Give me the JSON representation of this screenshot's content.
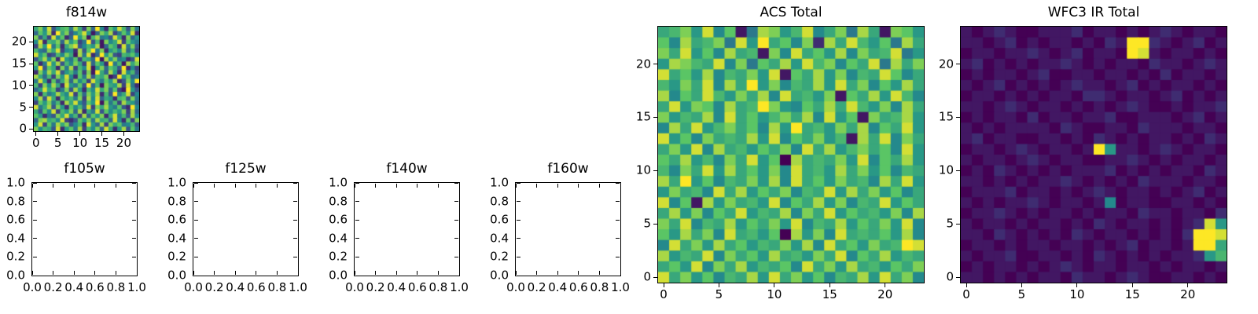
{
  "figure": {
    "background": "#ffffff",
    "axis_color": "#000000"
  },
  "colors": {
    "viridis_stops": [
      "#440154",
      "#3b528b",
      "#21918c",
      "#5ec962",
      "#fde725"
    ]
  },
  "chart_data": [
    {
      "type": "heatmap",
      "title": "f814w",
      "colormap": "viridis",
      "levels": 16,
      "extent": [
        0,
        24,
        0,
        24
      ],
      "xticks": {
        "values": [
          0,
          5,
          10,
          15,
          20
        ],
        "labels": [
          "0",
          "5",
          "10",
          "15",
          "20"
        ]
      },
      "yticks": {
        "values": [
          0,
          5,
          10,
          15,
          20
        ],
        "labels": [
          "0",
          "5",
          "10",
          "15",
          "20"
        ]
      },
      "rows": [
        "9c7e48ab6d93c5f72b8ea4c6",
        "5b8d2f9c47ae815c9d36b7e2",
        "c493e7b25f8c1ad674e92c58",
        "7e2a9c5d8b36f4a1c79e3b86",
        "3d8f6b29ce47a8d15b92e6c4",
        "a65c9e3782d4bf6c28a7d593",
        "e8b34a7c91d6e25f8c43a9b7",
        "49d7c2e86b3a95f1d8c6724e",
        "b26e8d4a7c93e5b82f6a1d9c",
        "8f4b92c6d3a7e18c5b94f273",
        "2c7d9e48a6b3c1f95d82e7a4",
        "d95a3c8e72b6d4a9c13f8b56",
        "6e82b49d5c7a3e96b8d24c7f",
        "a3c7d92e86b4f5a1c98d3e62",
        "58e9b36c4d82a7e9c5b31f84",
        "c2a68d97e3b5c8d2a4f69e37",
        "7d4e92b8a6c3d7e5982ab4c6",
        "3b8c6a2d9e74b8f1c6a3d985",
        "e69d4c82b7a5e3c9d86b42f7",
        "94b7e3a8c5d296e4b7a8c3d5",
        "b8264c9e7a3d5b8c29e6a4d7",
        "5cd9a7e324b8c6d9a5e72b3c",
        "8e3b6d9c47a2e85d3c9b67a4",
        "c7a94e28b6d3a7c5e928d4b6"
      ]
    },
    {
      "type": "empty",
      "title": "f105w",
      "xlim": [
        0,
        1
      ],
      "ylim": [
        0,
        1
      ],
      "xticks": {
        "values": [
          0,
          0.2,
          0.4,
          0.6,
          0.8,
          1.0
        ],
        "labels": [
          "0.0",
          "0.2",
          "0.4",
          "0.6",
          "0.8",
          "1.0"
        ]
      },
      "yticks": {
        "values": [
          0,
          0.2,
          0.4,
          0.6,
          0.8,
          1.0
        ],
        "labels": [
          "0.0",
          "0.2",
          "0.4",
          "0.6",
          "0.8",
          "1.0"
        ]
      }
    },
    {
      "type": "empty",
      "title": "f125w",
      "xlim": [
        0,
        1
      ],
      "ylim": [
        0,
        1
      ],
      "xticks": {
        "values": [
          0,
          0.2,
          0.4,
          0.6,
          0.8,
          1.0
        ],
        "labels": [
          "0.0",
          "0.2",
          "0.4",
          "0.6",
          "0.8",
          "1.0"
        ]
      },
      "yticks": {
        "values": [
          0,
          0.2,
          0.4,
          0.6,
          0.8,
          1.0
        ],
        "labels": [
          "0.0",
          "0.2",
          "0.4",
          "0.6",
          "0.8",
          "1.0"
        ]
      }
    },
    {
      "type": "empty",
      "title": "f140w",
      "xlim": [
        0,
        1
      ],
      "ylim": [
        0,
        1
      ],
      "xticks": {
        "values": [
          0,
          0.2,
          0.4,
          0.6,
          0.8,
          1.0
        ],
        "labels": [
          "0.0",
          "0.2",
          "0.4",
          "0.6",
          "0.8",
          "1.0"
        ]
      },
      "yticks": {
        "values": [
          0,
          0.2,
          0.4,
          0.6,
          0.8,
          1.0
        ],
        "labels": [
          "0.0",
          "0.2",
          "0.4",
          "0.6",
          "0.8",
          "1.0"
        ]
      }
    },
    {
      "type": "empty",
      "title": "f160w",
      "xlim": [
        0,
        1
      ],
      "ylim": [
        0,
        1
      ],
      "xticks": {
        "values": [
          0,
          0.2,
          0.4,
          0.6,
          0.8,
          1.0
        ],
        "labels": [
          "0.0",
          "0.2",
          "0.4",
          "0.6",
          "0.8",
          "1.0"
        ]
      },
      "yticks": {
        "values": [
          0,
          0.2,
          0.4,
          0.6,
          0.8,
          1.0
        ],
        "labels": [
          "0.0",
          "0.2",
          "0.4",
          "0.6",
          "0.8",
          "1.0"
        ]
      }
    },
    {
      "type": "heatmap",
      "title": "ACS Total",
      "colormap": "viridis",
      "levels": 16,
      "extent": [
        0,
        24,
        0,
        24
      ],
      "xticks": {
        "values": [
          0,
          5,
          10,
          15,
          20
        ],
        "labels": [
          "0",
          "5",
          "10",
          "15",
          "20"
        ]
      },
      "yticks": {
        "values": [
          0,
          5,
          10,
          15,
          20
        ],
        "labels": [
          "0",
          "5",
          "10",
          "15",
          "20"
        ]
      },
      "rows": [
        "9ac8e7b16dc8ae79c6d91cb8",
        "b7d9ac6e8f9b7c2d9ea8b6d9",
        "c9e8b7d9a1c7e9b8d7c9ae68",
        "8dca9e7c6b9d8eac7b9e6d9c",
        "e9b8d7a9c8e1b9d8c7a9eb79",
        "a8c9e7d9f8c7a9d8e9c7b8d9",
        "d7b9ea8c9d7e9a8c1b9d8ea7",
        "9e8cb7d9afc87b9d9ea8c7d9",
        "c8a9d7e9b8ac9d7e8b1c9ad8",
        "7d9e8ac9b7d8f9a8c9d7b9e8",
        "e8b7c9a9d8e7b9c8a1d9e7c9",
        "9c8e7d9a8b9c7e9d8ac9b7e8",
        "b9d8a7c9e8b0d9a9c8e7b9d8",
        "a7c9e8d9b8c7e9a8d9c8b7a9",
        "d9f8b7a9c8d7e9b8c9a7d9e8",
        "8c9a7e9d8b9c7a9e8d9c8b79",
        "e7b1d8c9a8e7b9d8c7a9e8b9",
        "9d8c7b9e8a9d7c9e8b9a8c7d",
        "c9e7a9d8b9c8e7a9d8b9c8e7",
        "b8d9c7e9a8b0d8c7e9a9b8d7",
        "7e9c8d9b8a9c8d7e9b8c9afe",
        "d8a9e7c9b8d9a8c9e7b9d8a9",
        "9b8e7c9d8a9b7e9c8d9a8b9c",
        "e9c8b7a9d8e9c8b7a9d8e9c7"
      ]
    },
    {
      "type": "heatmap",
      "title": "WFC3 IR Total",
      "colormap": "viridis",
      "levels": 16,
      "extent": [
        0,
        24,
        0,
        24
      ],
      "xticks": {
        "values": [
          0,
          5,
          10,
          15,
          20
        ],
        "labels": [
          "0",
          "5",
          "10",
          "15",
          "20"
        ]
      },
      "yticks": {
        "values": [
          0,
          5,
          10,
          15,
          20
        ],
        "labels": [
          "0",
          "5",
          "10",
          "15",
          "20"
        ]
      },
      "rows": [
        "101210011120110101210110",
        "110120101101021ff2101201",
        "011011210120110fe1011010",
        "120101011210101102110121",
        "010110120011011010201101",
        "101201010121101201011010",
        "011010101102210110120101",
        "110121011010101210010112",
        "010110201101120011101201",
        "101011110210011021110110",
        "120110011010210101101021",
        "011012101101f81101210110",
        "101101210110011210101101",
        "010210101011120101011021",
        "110101011210101021110110",
        "011120110101210110101201",
        "101011210110170110011010",
        "011210101101011021101102",
        "1011010110102101101012e8",
        "110210101021011010102ffe",
        "011010110110101201101ff9",
        "10112001101021010101128a",
        "010110101210110110101101",
        "110101011021101210011010"
      ]
    }
  ]
}
